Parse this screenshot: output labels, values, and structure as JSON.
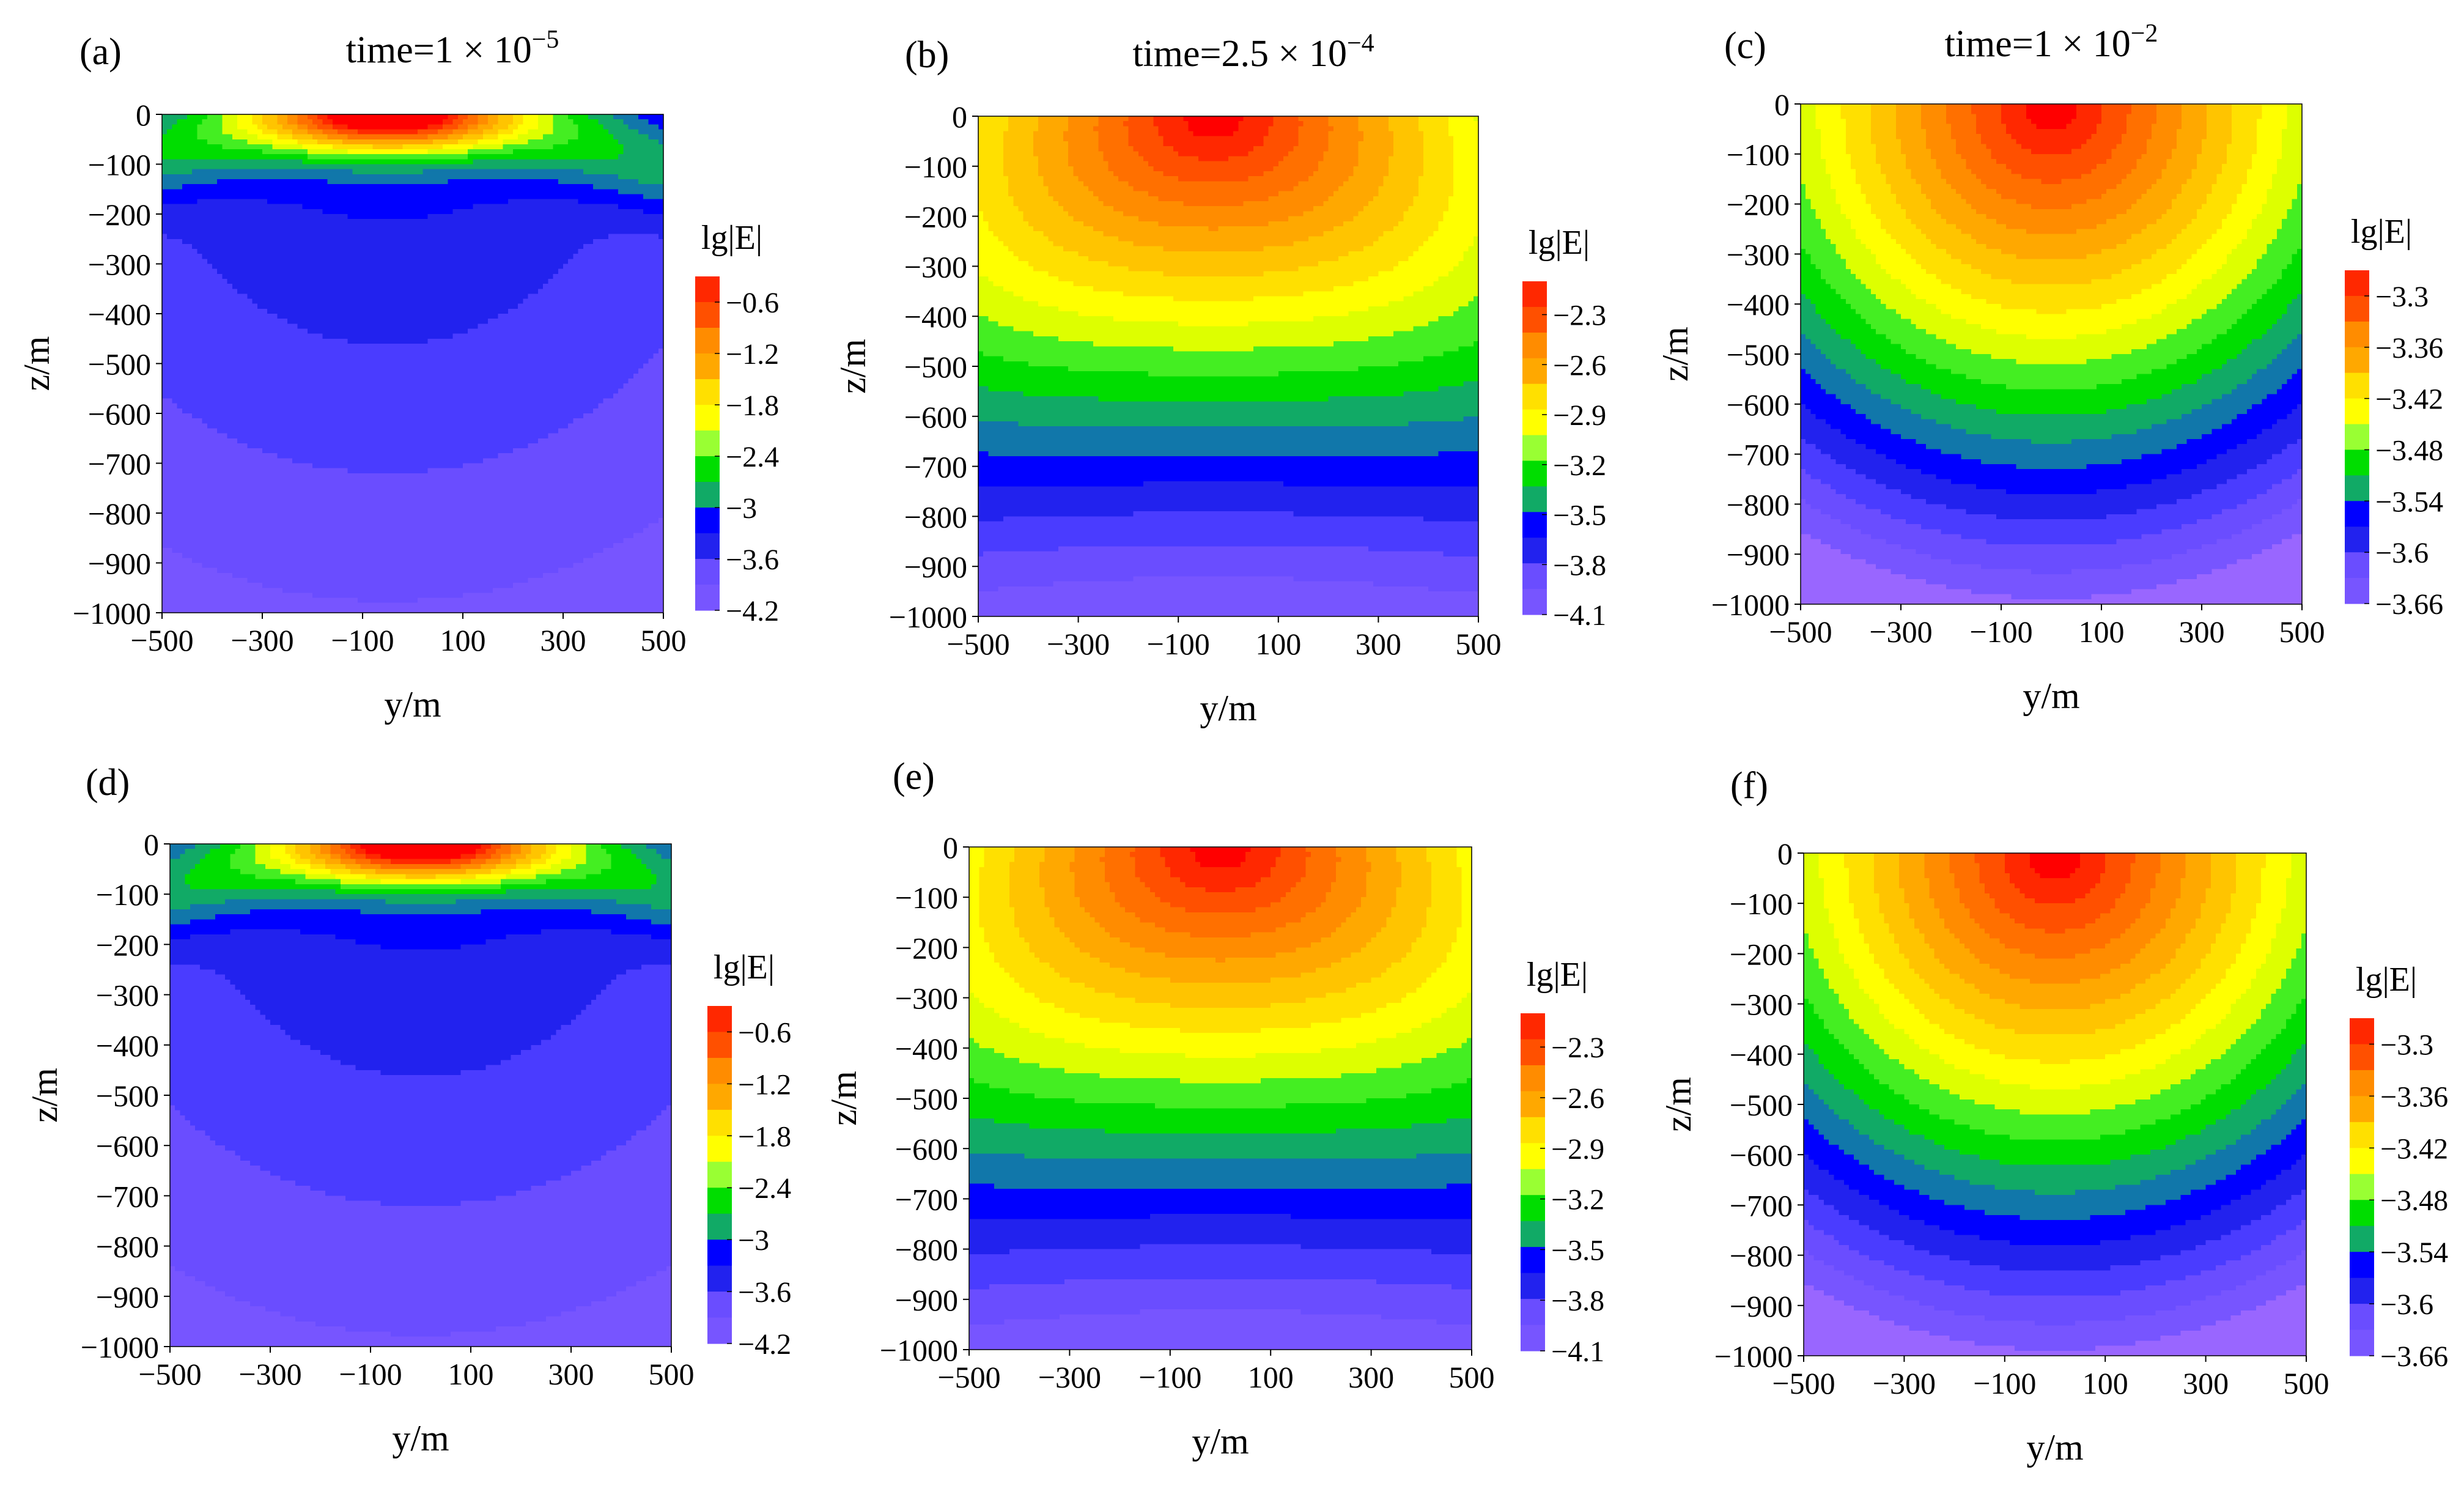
{
  "figure": {
    "background": "#ffffff",
    "colormap": [
      "#9966ff",
      "#7755ff",
      "#6a4dff",
      "#4a3cff",
      "#2222ee",
      "#0000ff",
      "#1177aa",
      "#11aa66",
      "#00dd00",
      "#44ee22",
      "#99ff33",
      "#ddff00",
      "#ffff00",
      "#ffe000",
      "#ffc400",
      "#ffa800",
      "#ff8c00",
      "#ff7000",
      "#ff5000",
      "#ff2800",
      "#ff0000"
    ]
  },
  "chart_data": [
    {
      "id": "a",
      "type": "heatmap",
      "panel_label": "(a)",
      "title_prefix": "time=1 × 10",
      "title_exp": "−5",
      "xlabel": "y/m",
      "ylabel": "z/m",
      "xlim": [
        -500,
        500
      ],
      "ylim": [
        -1000,
        0
      ],
      "x_ticks": [
        "−500",
        "−300",
        "−100",
        "100",
        "300",
        "500"
      ],
      "y_ticks": [
        "0",
        "−100",
        "−200",
        "−300",
        "−400",
        "−500",
        "−600",
        "−700",
        "−800",
        "−900",
        "−1000"
      ],
      "colorbar": {
        "label": "lg|E|",
        "range": [
          -4.2,
          -0.3
        ],
        "ticks": [
          "−0.6",
          "−1.2",
          "−1.8",
          "−2.4",
          "−3",
          "−3.6",
          "−4.2"
        ],
        "tick_values": [
          -0.6,
          -1.2,
          -1.8,
          -2.4,
          -3,
          -3.6,
          -4.2
        ]
      },
      "field": {
        "model": "surface",
        "center_y": -50,
        "levels": 20
      }
    },
    {
      "id": "b",
      "type": "heatmap",
      "panel_label": "(b)",
      "title_prefix": "time=2.5 × 10",
      "title_exp": "−4",
      "xlabel": "y/m",
      "ylabel": "z/m",
      "xlim": [
        -500,
        500
      ],
      "ylim": [
        -1000,
        0
      ],
      "x_ticks": [
        "−500",
        "−300",
        "−100",
        "100",
        "300",
        "500"
      ],
      "y_ticks": [
        "0",
        "−100",
        "−200",
        "−300",
        "−400",
        "−500",
        "−600",
        "−700",
        "−800",
        "−900",
        "−1000"
      ],
      "colorbar": {
        "label": "lg|E|",
        "range": [
          -4.1,
          -2.1
        ],
        "ticks": [
          "−2.3",
          "−2.6",
          "−2.9",
          "−3.2",
          "−3.5",
          "−3.8",
          "−4.1"
        ],
        "tick_values": [
          -2.3,
          -2.6,
          -2.9,
          -3.2,
          -3.5,
          -3.8,
          -4.1
        ]
      },
      "field": {
        "model": "bowl",
        "center_y": -30,
        "levels": 20
      }
    },
    {
      "id": "c",
      "type": "heatmap",
      "panel_label": "(c)",
      "title_prefix": "time=1 × 10",
      "title_exp": "−2",
      "xlabel": "y/m",
      "ylabel": "z/m",
      "xlim": [
        -500,
        500
      ],
      "ylim": [
        -1000,
        0
      ],
      "x_ticks": [
        "−500",
        "−300",
        "−100",
        "100",
        "300",
        "500"
      ],
      "y_ticks": [
        "0",
        "−100",
        "−200",
        "−300",
        "−400",
        "−500",
        "−600",
        "−700",
        "−800",
        "−900",
        "−1000"
      ],
      "colorbar": {
        "label": "lg|E|",
        "range": [
          -3.66,
          -3.27
        ],
        "ticks": [
          "−3.3",
          "−3.36",
          "−3.42",
          "−3.48",
          "−3.54",
          "−3.6",
          "−3.66"
        ],
        "tick_values": [
          -3.3,
          -3.36,
          -3.42,
          -3.48,
          -3.54,
          -3.6,
          -3.66
        ]
      },
      "field": {
        "model": "radial",
        "center_y": 0,
        "levels": 20
      }
    },
    {
      "id": "d",
      "type": "heatmap",
      "panel_label": "(d)",
      "title_prefix": "",
      "title_exp": "",
      "xlabel": "y/m",
      "ylabel": "z/m",
      "xlim": [
        -500,
        500
      ],
      "ylim": [
        -1000,
        0
      ],
      "x_ticks": [
        "−500",
        "−300",
        "−100",
        "100",
        "300",
        "500"
      ],
      "y_ticks": [
        "0",
        "−100",
        "−200",
        "−300",
        "−400",
        "−500",
        "−600",
        "−700",
        "−800",
        "−900",
        "−1000"
      ],
      "colorbar": {
        "label": "lg|E|",
        "range": [
          -4.2,
          -0.3
        ],
        "ticks": [
          "−0.6",
          "−1.2",
          "−1.8",
          "−2.4",
          "−3",
          "−3.6",
          "−4.2"
        ],
        "tick_values": [
          -0.6,
          -1.2,
          -1.8,
          -2.4,
          -3,
          -3.6,
          -4.2
        ]
      },
      "field": {
        "model": "surface",
        "center_y": 0,
        "levels": 20
      }
    },
    {
      "id": "e",
      "type": "heatmap",
      "panel_label": "(e)",
      "title_prefix": "",
      "title_exp": "",
      "xlabel": "y/m",
      "ylabel": "z/m",
      "xlim": [
        -500,
        500
      ],
      "ylim": [
        -1000,
        0
      ],
      "x_ticks": [
        "−500",
        "−300",
        "−100",
        "100",
        "300",
        "500"
      ],
      "y_ticks": [
        "0",
        "−100",
        "−200",
        "−300",
        "−400",
        "−500",
        "−600",
        "−700",
        "−800",
        "−900",
        "−1000"
      ],
      "colorbar": {
        "label": "lg|E|",
        "range": [
          -4.1,
          -2.1
        ],
        "ticks": [
          "−2.3",
          "−2.6",
          "−2.9",
          "−3.2",
          "−3.5",
          "−3.8",
          "−4.1"
        ],
        "tick_values": [
          -2.3,
          -2.6,
          -2.9,
          -3.2,
          -3.5,
          -3.8,
          -4.1
        ]
      },
      "field": {
        "model": "bowl",
        "center_y": 0,
        "levels": 20
      }
    },
    {
      "id": "f",
      "type": "heatmap",
      "panel_label": "(f)",
      "title_prefix": "",
      "title_exp": "",
      "xlabel": "y/m",
      "ylabel": "z/m",
      "xlim": [
        -500,
        500
      ],
      "ylim": [
        -1000,
        0
      ],
      "x_ticks": [
        "−500",
        "−300",
        "−100",
        "100",
        "300",
        "500"
      ],
      "y_ticks": [
        "0",
        "−100",
        "−200",
        "−300",
        "−400",
        "−500",
        "−600",
        "−700",
        "−800",
        "−900",
        "−1000"
      ],
      "colorbar": {
        "label": "lg|E|",
        "range": [
          -3.66,
          -3.27
        ],
        "ticks": [
          "−3.3",
          "−3.36",
          "−3.42",
          "−3.48",
          "−3.54",
          "−3.6",
          "−3.66"
        ],
        "tick_values": [
          -3.3,
          -3.36,
          -3.42,
          -3.48,
          -3.54,
          -3.6,
          -3.66
        ]
      },
      "field": {
        "model": "radial",
        "center_y": 0,
        "levels": 20
      }
    }
  ]
}
